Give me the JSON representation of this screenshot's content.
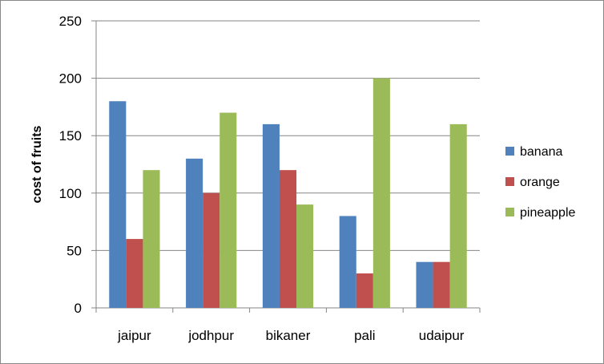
{
  "chart_data": {
    "type": "bar",
    "title": "",
    "xlabel": "",
    "ylabel": "cost of fruits",
    "ylim": [
      0,
      250
    ],
    "yticks": [
      0,
      50,
      100,
      150,
      200,
      250
    ],
    "grid": "horizontal",
    "legend": "right",
    "categories": [
      "jaipur",
      "jodhpur",
      "bikaner",
      "pali",
      "udaipur"
    ],
    "series": [
      {
        "name": "banana",
        "color": "#4F81BD",
        "values": [
          180,
          130,
          160,
          80,
          40
        ]
      },
      {
        "name": "orange",
        "color": "#C0504D",
        "values": [
          60,
          100,
          120,
          30,
          40
        ]
      },
      {
        "name": "pineapple",
        "color": "#9BBB59",
        "values": [
          120,
          170,
          90,
          200,
          160
        ]
      }
    ]
  }
}
